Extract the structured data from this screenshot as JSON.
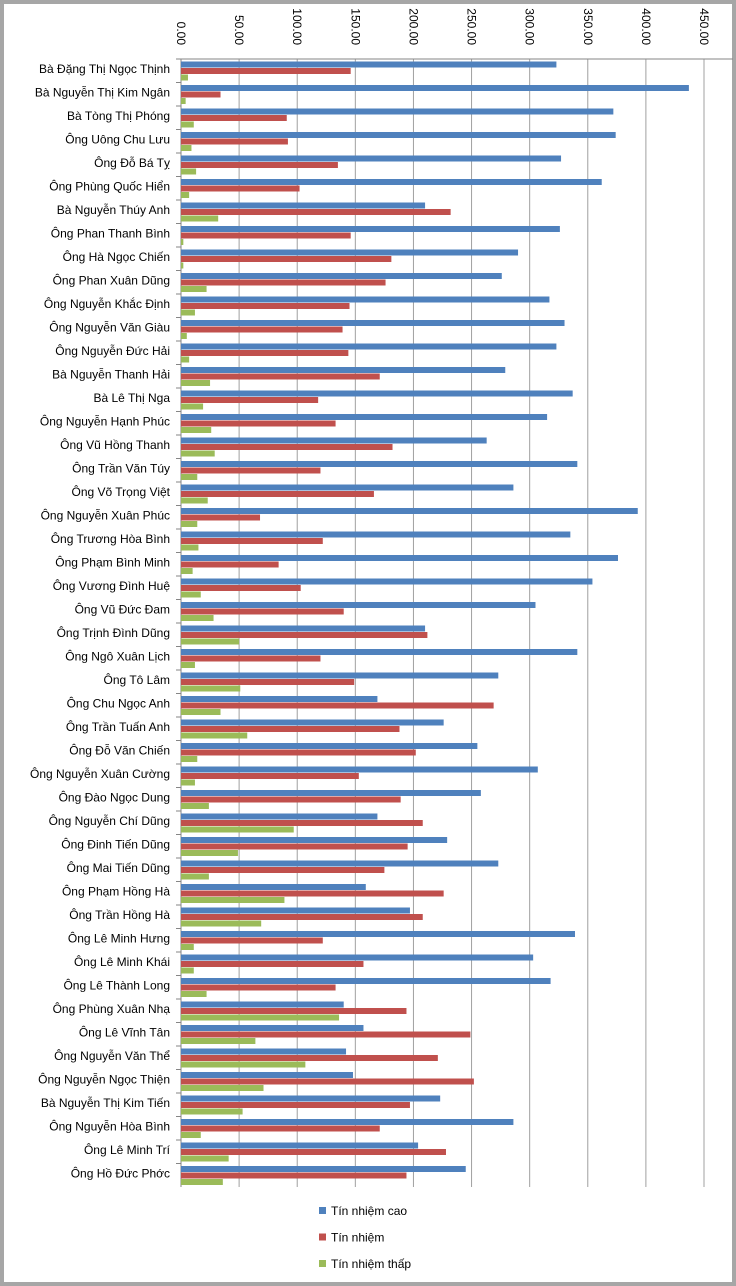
{
  "chart_data": {
    "type": "bar",
    "orientation": "horizontal",
    "title": "",
    "xlabel": "",
    "ylabel": "",
    "xlim": [
      0,
      450
    ],
    "x_ticks": [
      "0.00",
      "50.00",
      "100.00",
      "150.00",
      "200.00",
      "250.00",
      "300.00",
      "350.00",
      "400.00",
      "450.00"
    ],
    "grid": true,
    "legend_position": "bottom",
    "categories": [
      "Bà Đặng Thị Ngọc Thịnh",
      "Bà Nguyễn Thị Kim Ngân",
      "Bà Tòng Thị Phóng",
      "Ông Uông Chu Lưu",
      "Ông Đỗ Bá Tỵ",
      "Ông Phùng Quốc Hiển",
      "Bà Nguyễn Thúy Anh",
      "Ông Phan Thanh Bình",
      "Ông Hà Ngọc Chiến",
      "Ông Phan Xuân Dũng",
      "Ông Nguyễn Khắc Định",
      "Ông Nguyễn Văn Giàu",
      "Ông Nguyễn Đức Hải",
      "Bà Nguyễn Thanh Hải",
      "Bà Lê Thị Nga",
      "Ông Nguyễn Hạnh Phúc",
      "Ông Vũ Hồng Thanh",
      "Ông Trần Văn Túy",
      "Ông Võ Trọng Việt",
      "Ông Nguyễn Xuân Phúc",
      "Ông Trương Hòa Bình",
      "Ông Phạm Bình Minh",
      "Ông Vương Đình Huệ",
      "Ông Vũ Đức Đam",
      "Ông Trịnh Đình Dũng",
      "Ông Ngô Xuân Lịch",
      "Ông Tô Lâm",
      "Ông Chu Ngọc Anh",
      "Ông Trần Tuấn Anh",
      "Ông Đỗ Văn Chiến",
      "Ông Nguyễn Xuân Cường",
      "Ông Đào Ngọc Dung",
      "Ông Nguyễn Chí Dũng",
      "Ông Đinh Tiến Dũng",
      "Ông Mai Tiến Dũng",
      "Ông Phạm Hồng Hà",
      "Ông Trần Hồng Hà",
      "Ông Lê Minh Hưng",
      "Ông Lê Minh Khái",
      "Ông Lê Thành Long",
      "Ông Phùng Xuân Nhạ",
      "Ông Lê Vĩnh Tân",
      "Ông Nguyễn Văn Thể",
      "Ông Nguyễn Ngọc Thiện",
      "Bà Nguyễn Thị Kim Tiến",
      "Ông Nguyễn Hòa Bình",
      "Ông Lê Minh Trí",
      "Ông Hồ Đức Phớc"
    ],
    "series": [
      {
        "name": "Tín nhiệm cao",
        "color": "#4f81bd",
        "values": [
          323,
          437,
          372,
          374,
          327,
          362,
          210,
          326,
          290,
          276,
          317,
          330,
          323,
          279,
          337,
          315,
          263,
          341,
          286,
          393,
          335,
          376,
          354,
          305,
          210,
          341,
          273,
          169,
          226,
          255,
          307,
          258,
          169,
          229,
          273,
          159,
          197,
          339,
          303,
          318,
          140,
          157,
          142,
          148,
          223,
          286,
          204,
          245
        ]
      },
      {
        "name": "Tín nhiệm",
        "color": "#c0504d",
        "values": [
          146,
          34,
          91,
          92,
          135,
          102,
          232,
          146,
          181,
          176,
          145,
          139,
          144,
          171,
          118,
          133,
          182,
          120,
          166,
          68,
          122,
          84,
          103,
          140,
          212,
          120,
          149,
          269,
          188,
          202,
          153,
          189,
          208,
          195,
          175,
          226,
          208,
          122,
          157,
          133,
          194,
          249,
          221,
          252,
          197,
          171,
          228,
          194
        ]
      },
      {
        "name": "Tín nhiệm thấp",
        "color": "#9bbb59",
        "values": [
          6,
          4,
          11,
          9,
          13,
          7,
          32,
          2,
          2,
          22,
          12,
          5,
          7,
          25,
          19,
          26,
          29,
          14,
          23,
          14,
          15,
          10,
          17,
          28,
          50,
          12,
          51,
          34,
          57,
          14,
          12,
          24,
          97,
          49,
          24,
          89,
          69,
          11,
          11,
          22,
          136,
          64,
          107,
          71,
          53,
          17,
          41,
          36
        ]
      }
    ]
  }
}
